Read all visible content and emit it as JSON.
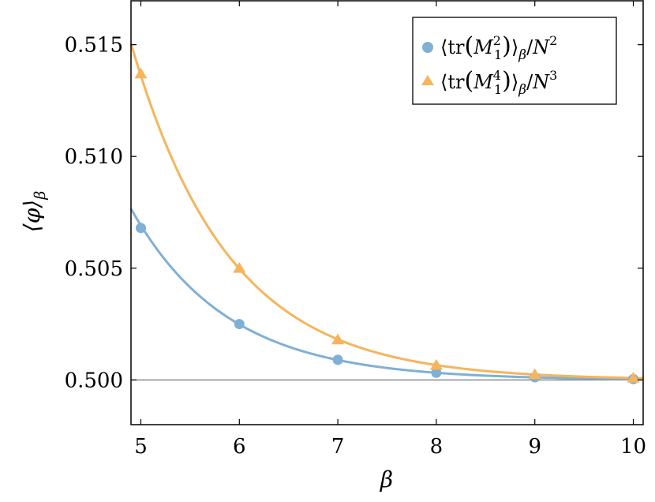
{
  "chart_data": {
    "type": "line",
    "xlabel": "β",
    "ylabel": "⟨φ⟩_β",
    "xlim": [
      4.9,
      10.1
    ],
    "ylim": [
      0.498,
      0.517
    ],
    "x_ticks": [
      "5",
      "6",
      "7",
      "8",
      "9",
      "10"
    ],
    "y_ticks": [
      "0.500",
      "0.505",
      "0.510",
      "0.515"
    ],
    "reference_line": 0.5,
    "grid": false,
    "legend_position": "top-right",
    "series": [
      {
        "name": "⟨tr(M₁²)⟩_β/N²",
        "color": "#7fb0d5",
        "marker": "circle",
        "x": [
          5,
          6,
          7,
          8,
          9,
          10
        ],
        "y": [
          0.5068,
          0.5025,
          0.5009,
          0.50032,
          0.50012,
          0.50004
        ]
      },
      {
        "name": "⟨tr(M₁⁴)⟩_β/N³",
        "color": "#f7b45b",
        "marker": "triangle",
        "x": [
          5,
          6,
          7,
          8,
          9,
          10
        ],
        "y": [
          0.5137,
          0.505,
          0.5018,
          0.50066,
          0.50024,
          0.50009
        ]
      }
    ]
  }
}
